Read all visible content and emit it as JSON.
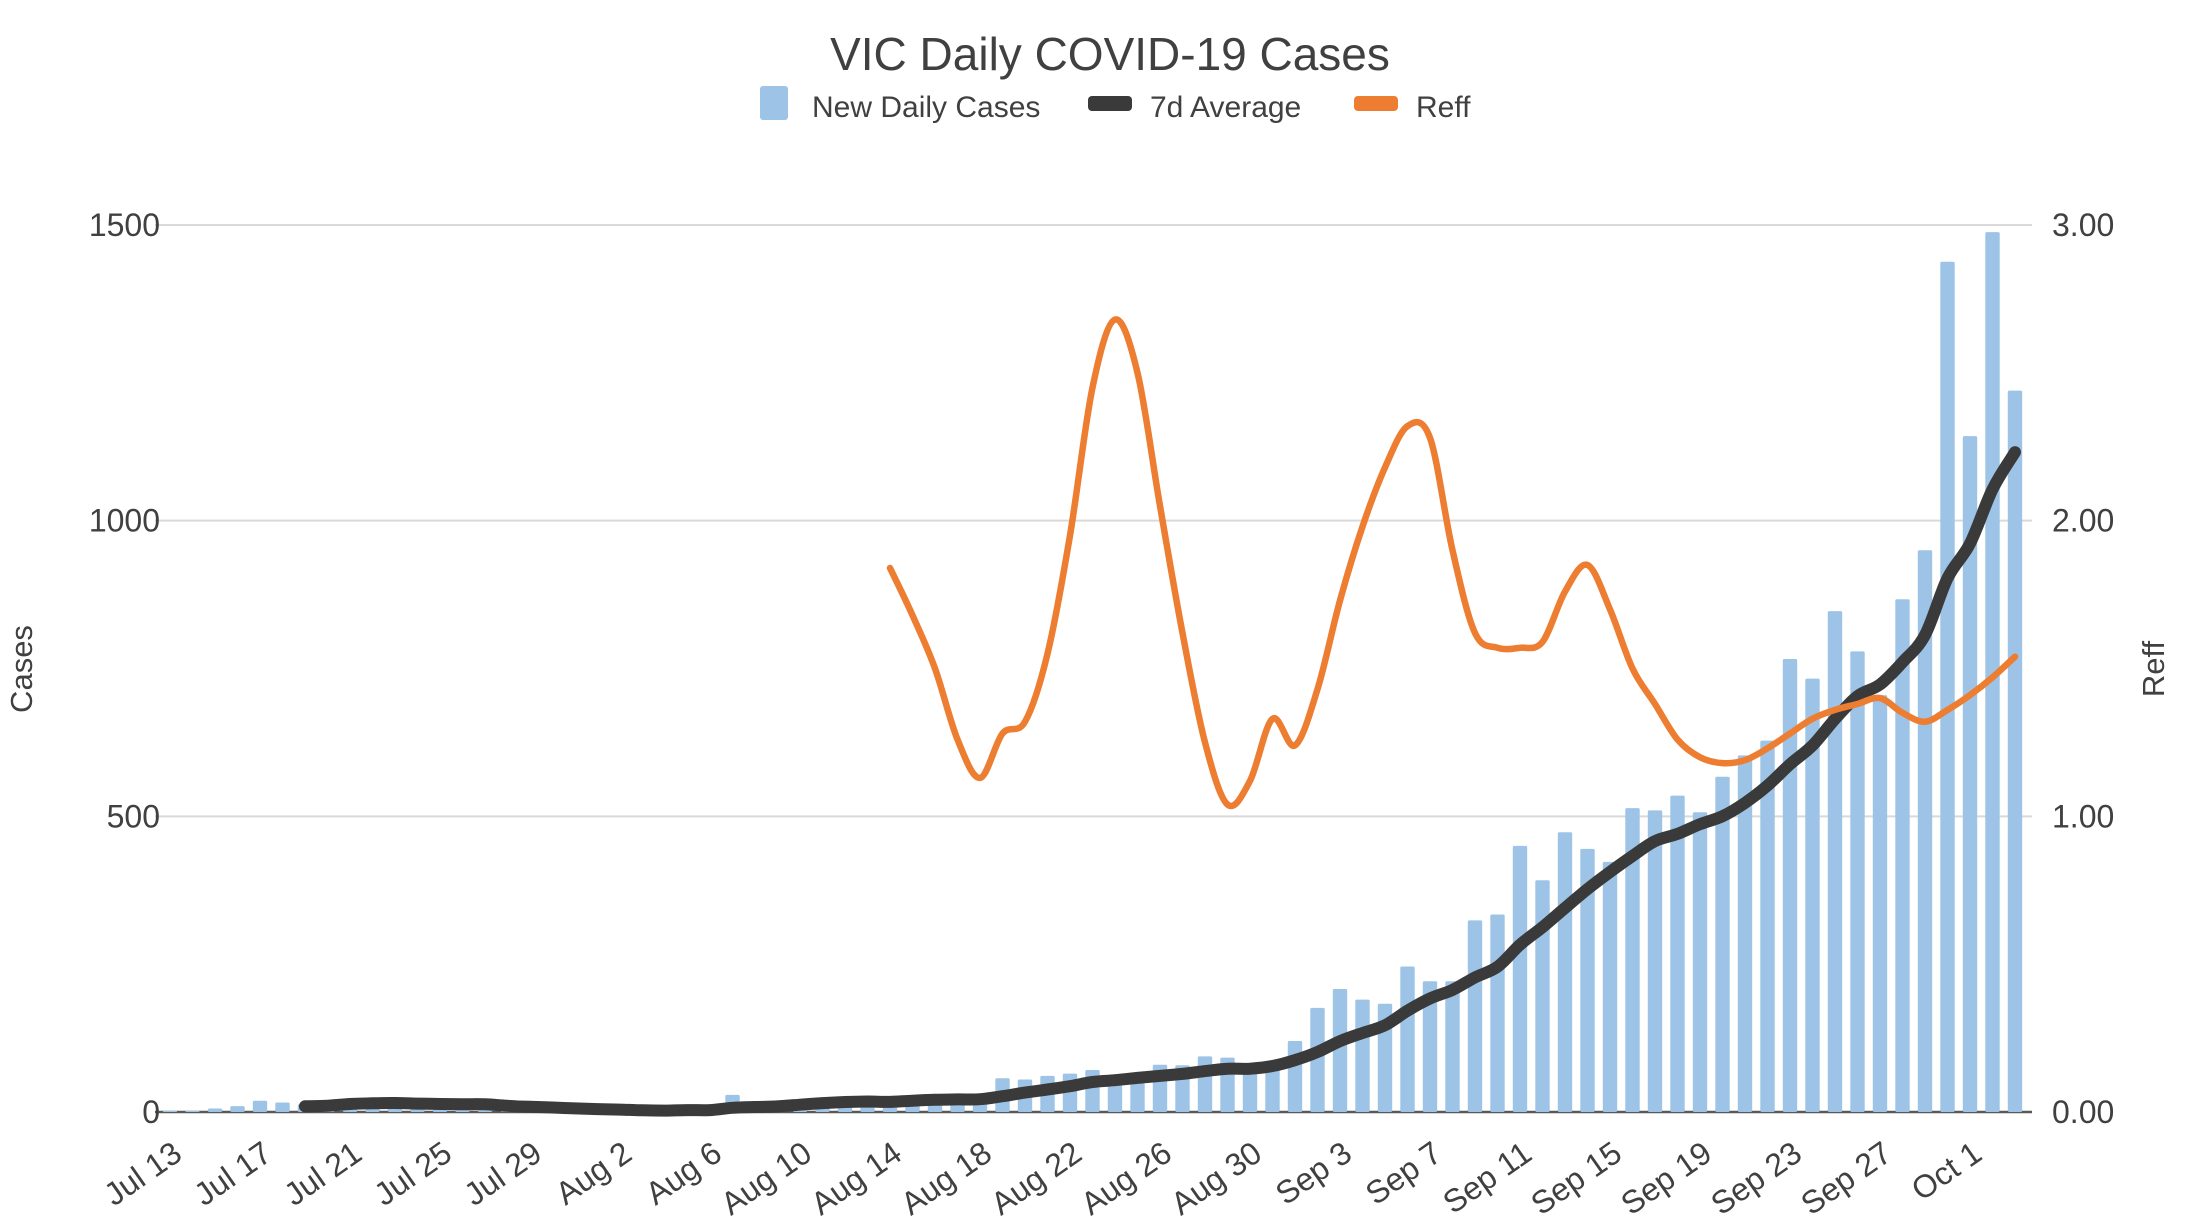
{
  "chart_data": {
    "type": "bar",
    "title": "VIC Daily COVID-19 Cases",
    "legend_position": "top",
    "grid": true,
    "x": {
      "tick_labels": [
        "Jul 13",
        "Jul 17",
        "Jul 21",
        "Jul 25",
        "Jul 29",
        "Aug 2",
        "Aug 6",
        "Aug 10",
        "Aug 14",
        "Aug 18",
        "Aug 22",
        "Aug 26",
        "Aug 30",
        "Sep 3",
        "Sep 7",
        "Sep 11",
        "Sep 15",
        "Sep 19",
        "Sep 23",
        "Sep 27",
        "Oct 1"
      ],
      "tick_interval_days": 4
    },
    "dates": [
      "Jul 13",
      "Jul 14",
      "Jul 15",
      "Jul 16",
      "Jul 17",
      "Jul 18",
      "Jul 19",
      "Jul 20",
      "Jul 21",
      "Jul 22",
      "Jul 23",
      "Jul 24",
      "Jul 25",
      "Jul 26",
      "Jul 27",
      "Jul 28",
      "Jul 29",
      "Jul 30",
      "Jul 31",
      "Aug 1",
      "Aug 2",
      "Aug 3",
      "Aug 4",
      "Aug 5",
      "Aug 6",
      "Aug 7",
      "Aug 8",
      "Aug 9",
      "Aug 10",
      "Aug 11",
      "Aug 12",
      "Aug 13",
      "Aug 14",
      "Aug 15",
      "Aug 16",
      "Aug 17",
      "Aug 18",
      "Aug 19",
      "Aug 20",
      "Aug 21",
      "Aug 22",
      "Aug 23",
      "Aug 24",
      "Aug 25",
      "Aug 26",
      "Aug 27",
      "Aug 28",
      "Aug 29",
      "Aug 30",
      "Aug 31",
      "Sep 1",
      "Sep 2",
      "Sep 3",
      "Sep 4",
      "Sep 5",
      "Sep 6",
      "Sep 7",
      "Sep 8",
      "Sep 9",
      "Sep 10",
      "Sep 11",
      "Sep 12",
      "Sep 13",
      "Sep 14",
      "Sep 15",
      "Sep 16",
      "Sep 17",
      "Sep 18",
      "Sep 19",
      "Sep 20",
      "Sep 21",
      "Sep 22",
      "Sep 23",
      "Sep 24",
      "Sep 25",
      "Sep 26",
      "Sep 27",
      "Sep 28",
      "Sep 29",
      "Sep 30",
      "Oct 1",
      "Oct 2",
      "Oct 3"
    ],
    "y_axis": {
      "label": "Cases",
      "ticks": [
        "0",
        "500",
        "1000",
        "1500"
      ],
      "min": 0,
      "max": 1500
    },
    "y2_axis": {
      "label": "Reff",
      "ticks": [
        "0.00",
        "1.00",
        "2.00",
        "3.00"
      ],
      "min": 0,
      "max": 3
    },
    "series": [
      {
        "name": "New Daily Cases",
        "type": "bar",
        "axis": "left",
        "color": "#9DC3E6",
        "values": [
          2,
          2,
          6,
          10,
          19,
          16,
          13,
          9,
          22,
          14,
          14,
          12,
          11,
          10,
          8,
          4,
          2,
          6,
          2,
          2,
          4,
          0,
          1,
          8,
          6,
          29,
          11,
          11,
          20,
          20,
          21,
          12,
          25,
          25,
          22,
          24,
          22,
          57,
          55,
          61,
          65,
          71,
          45,
          50,
          80,
          79,
          94,
          92,
          73,
          76,
          120,
          176,
          208,
          190,
          183,
          246,
          221,
          221,
          324,
          334,
          450,
          392,
          473,
          445,
          423,
          514,
          510,
          535,
          507,
          567,
          603,
          628,
          766,
          733,
          847,
          779,
          705,
          867,
          950,
          1438,
          1143,
          1488,
          1220
        ]
      },
      {
        "name": "7d Average",
        "type": "line",
        "axis": "left",
        "color": "#3A3A3A",
        "derived": "7-day trailing average of New Daily Cases",
        "start_index": 6
      },
      {
        "name": "Reff",
        "type": "line",
        "axis": "right",
        "color": "#ED7D31",
        "start_index": 32,
        "start_date": "Aug 14",
        "values": [
          1.84,
          1.68,
          1.5,
          1.26,
          1.13,
          1.28,
          1.32,
          1.55,
          1.95,
          2.45,
          2.68,
          2.5,
          2.05,
          1.62,
          1.25,
          1.04,
          1.12,
          1.33,
          1.24,
          1.43,
          1.73,
          1.98,
          2.18,
          2.32,
          2.28,
          1.9,
          1.62,
          1.57,
          1.57,
          1.59,
          1.76,
          1.85,
          1.7,
          1.5,
          1.38,
          1.26,
          1.2,
          1.18,
          1.19,
          1.23,
          1.28,
          1.33,
          1.36,
          1.38,
          1.4,
          1.35,
          1.32,
          1.36,
          1.41,
          1.47,
          1.54
        ]
      }
    ],
    "colors": {
      "grid": "#D9D9D9",
      "axis_line": "#595959",
      "text": "#404040",
      "title": "#767676"
    }
  }
}
